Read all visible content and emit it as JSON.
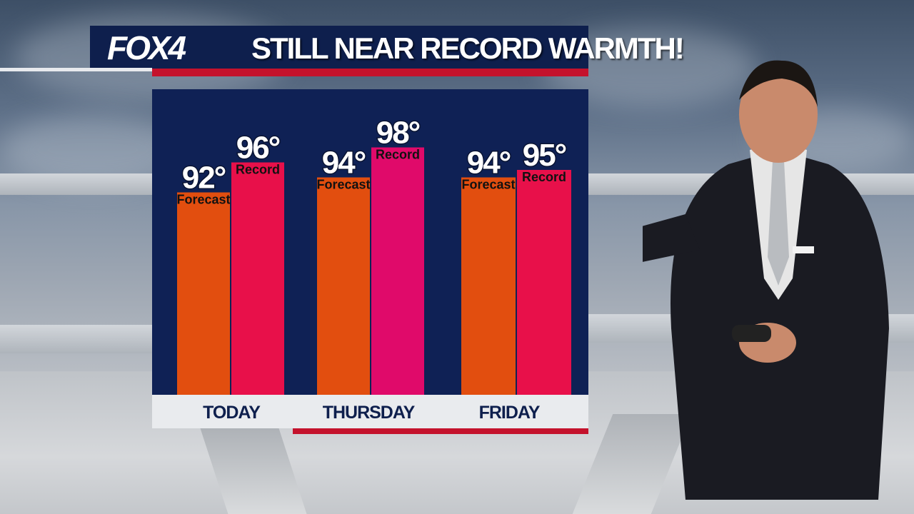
{
  "brand": {
    "logo": "FOX4"
  },
  "headline": "STILL NEAR RECORD WARMTH!",
  "colors": {
    "navy": "#0f2155",
    "forecast": "#e24e0f",
    "record": "#e8104a",
    "record_alt": "#e00a6a",
    "red_bar": "#c4122c"
  },
  "chart_data": {
    "type": "bar",
    "title": "STILL NEAR RECORD WARMTH!",
    "categories": [
      "TODAY",
      "THURSDAY",
      "FRIDAY"
    ],
    "category_display": [
      "Today",
      "Thursday",
      "Friday"
    ],
    "units": "°F",
    "series": [
      {
        "name": "Forecast",
        "values": [
          92,
          94,
          94
        ]
      },
      {
        "name": "Record",
        "values": [
          96,
          98,
          95
        ]
      }
    ],
    "value_labels": {
      "Forecast": [
        "92°",
        "94°",
        "94°"
      ],
      "Record": [
        "96°",
        "98°",
        "95°"
      ]
    },
    "grid": false,
    "legend": "none (labels printed on bars)"
  }
}
